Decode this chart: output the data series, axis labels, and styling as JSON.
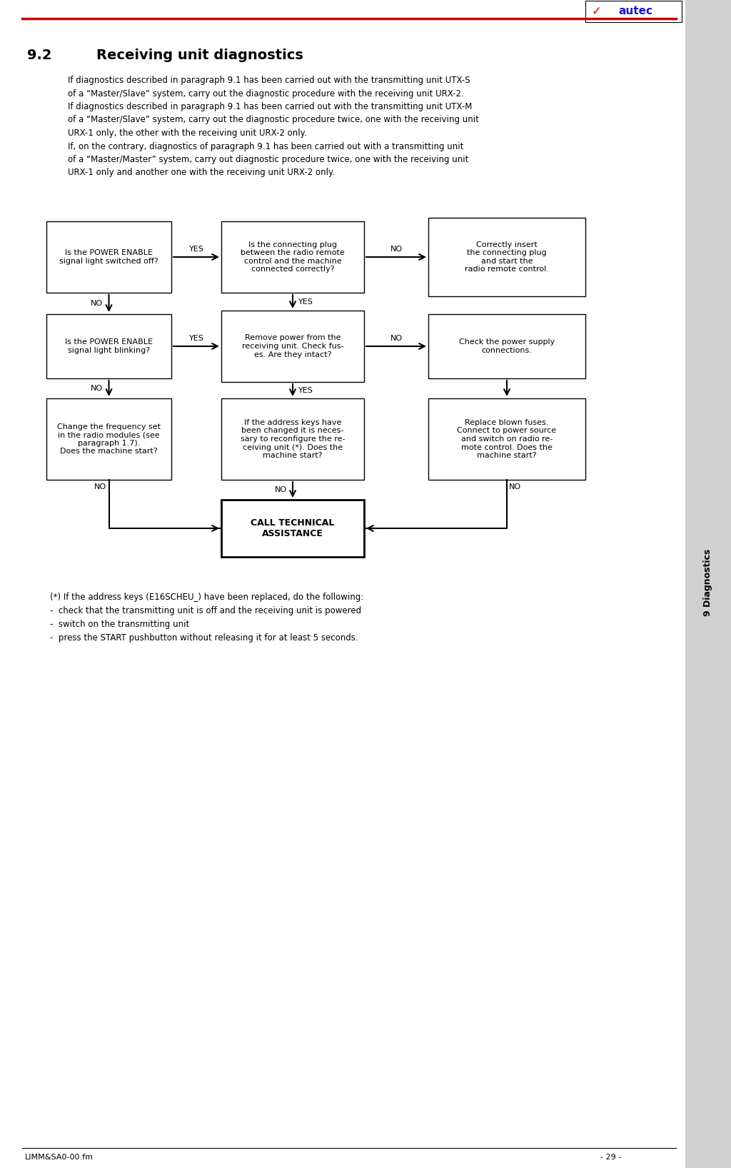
{
  "title_num": "9.2",
  "title_text": "Receiving unit diagnostics",
  "body_text": "If diagnostics described in paragraph 9.1 has been carried out with the transmitting unit UTX-S\nof a “Master/Slave” system, carry out the diagnostic procedure with the receiving unit URX-2.\nIf diagnostics described in paragraph 9.1 has been carried out with the transmitting unit UTX-M\nof a “Master/Slave” system, carry out the diagnostic procedure twice, one with the receiving unit\nURX-1 only, the other with the receiving unit URX-2 only.\nIf, on the contrary, diagnostics of paragraph 9.1 has been carried out with a transmitting unit\nof a “Master/Master” system, carry out diagnostic procedure twice, one with the receiving unit\nURX-1 only and another one with the receiving unit URX-2 only.",
  "footnote_text": "(*) If the address keys (E16SCHEU_) have been replaced, do the following:\n-  check that the transmitting unit is off and the receiving unit is powered\n-  switch on the transmitting unit\n-  press the START pushbutton without releasing it for at least 5 seconds.",
  "sidebar_text": "9 Diagnostics",
  "footer_left": "LIMM&SA0-00.fm",
  "footer_right": "- 29 -",
  "top_line_color": "#cc0000",
  "bg_color": "#ffffff"
}
